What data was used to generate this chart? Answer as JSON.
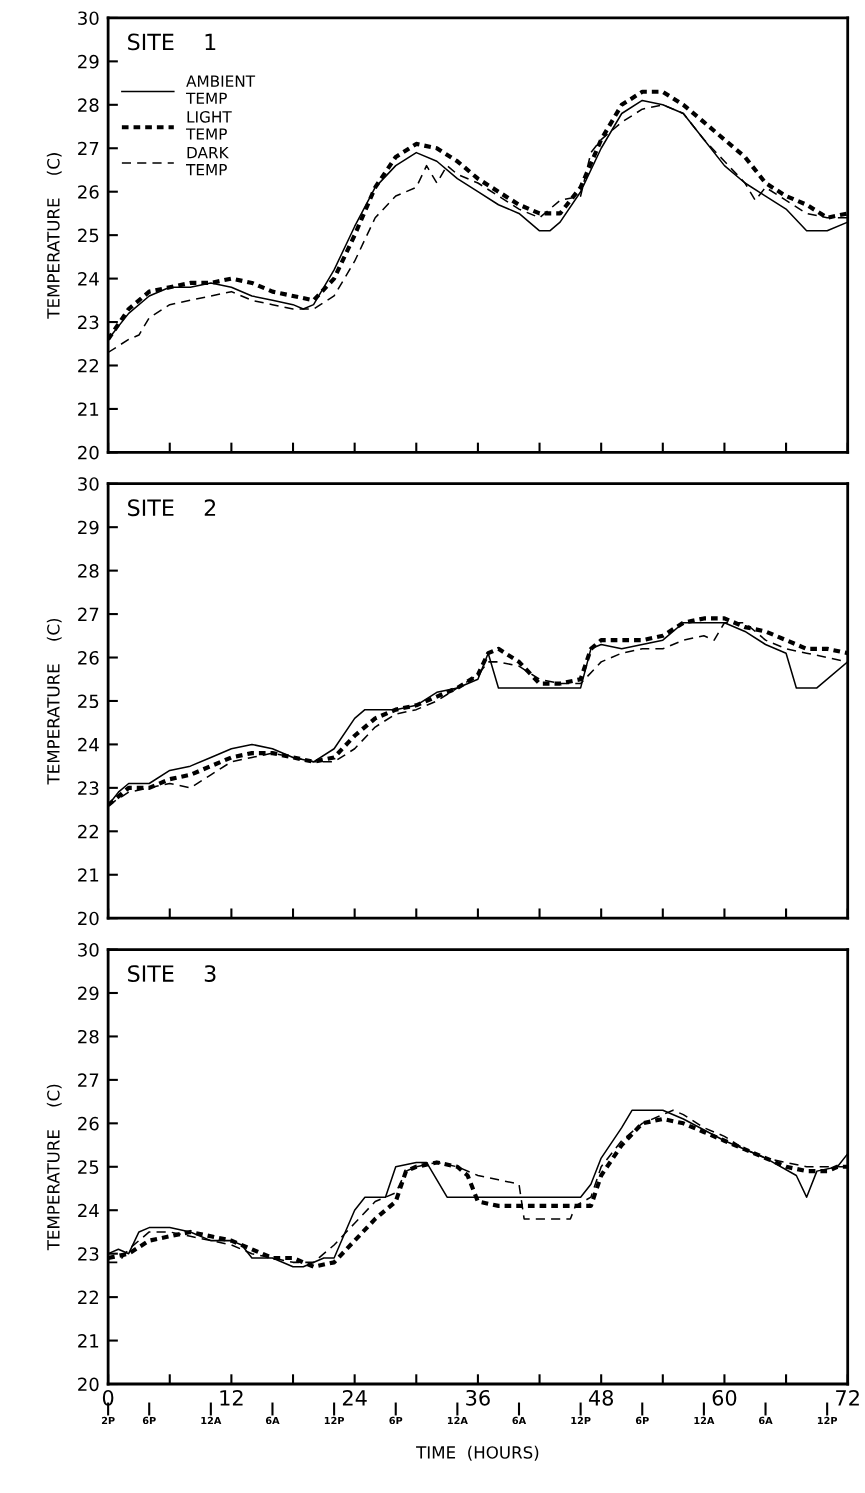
{
  "chart_data": [
    {
      "type": "line",
      "annotations": [
        "SITE    1"
      ],
      "ylabel": "TEMPERATURE    (C)",
      "xlim": [
        0,
        72
      ],
      "ylim": [
        20,
        30
      ],
      "tick_labels": "y",
      "legend": "top left",
      "grid": false,
      "xticks": [
        {
          "value": 0,
          "label": null
        },
        {
          "value": 6,
          "label": null
        },
        {
          "value": 12,
          "label": null
        },
        {
          "value": 18,
          "label": null
        },
        {
          "value": 24,
          "label": null
        },
        {
          "value": 30,
          "label": null
        },
        {
          "value": 36,
          "label": null
        },
        {
          "value": 42,
          "label": null
        },
        {
          "value": 48,
          "label": null
        },
        {
          "value": 54,
          "label": null
        },
        {
          "value": 60,
          "label": null
        },
        {
          "value": 66,
          "label": null
        },
        {
          "value": 72,
          "label": null
        }
      ],
      "yticks": [
        20,
        21,
        22,
        23,
        24,
        25,
        26,
        27,
        28,
        29,
        30
      ],
      "series": [
        {
          "name": "AMBIENT\nTEMP",
          "color": "#000000",
          "line_style": "solid",
          "x": [
            0,
            2,
            4,
            6,
            8,
            10,
            12,
            14,
            16,
            18,
            19,
            20,
            22,
            24,
            26,
            28,
            30,
            32,
            34,
            36,
            38,
            40,
            42,
            43,
            44,
            46,
            48,
            50,
            52,
            54,
            56,
            58,
            60,
            62,
            64,
            66,
            68,
            70,
            72
          ],
          "values": [
            22.6,
            23.2,
            23.6,
            23.8,
            23.8,
            23.9,
            23.8,
            23.6,
            23.5,
            23.4,
            23.3,
            23.4,
            24.2,
            25.2,
            26.1,
            26.6,
            26.9,
            26.7,
            26.3,
            26.0,
            25.7,
            25.5,
            25.1,
            25.1,
            25.3,
            26.0,
            27.0,
            27.8,
            28.1,
            28.0,
            27.8,
            27.2,
            26.6,
            26.2,
            25.9,
            25.6,
            25.1,
            25.1,
            25.3
          ]
        },
        {
          "name": "LIGHT\nTEMP",
          "color": "#000000",
          "line_style": "dotted",
          "x": [
            0,
            2,
            4,
            6,
            8,
            10,
            12,
            14,
            16,
            18,
            20,
            22,
            24,
            26,
            28,
            30,
            32,
            34,
            36,
            38,
            40,
            42,
            44,
            46,
            48,
            50,
            52,
            54,
            56,
            58,
            60,
            62,
            64,
            66,
            68,
            70,
            72
          ],
          "values": [
            22.6,
            23.3,
            23.7,
            23.8,
            23.9,
            23.9,
            24.0,
            23.9,
            23.7,
            23.6,
            23.5,
            24.0,
            25.0,
            26.1,
            26.8,
            27.1,
            27.0,
            26.7,
            26.3,
            26.0,
            25.7,
            25.5,
            25.5,
            26.1,
            27.2,
            28.0,
            28.3,
            28.3,
            28.0,
            27.6,
            27.2,
            26.8,
            26.2,
            25.9,
            25.7,
            25.4,
            25.5
          ]
        },
        {
          "name": "DARK\nTEMP",
          "color": "#000000",
          "line_style": "dashed",
          "x": [
            0,
            2,
            3,
            4,
            6,
            8,
            10,
            12,
            14,
            16,
            18,
            20,
            22,
            24,
            26,
            28,
            30,
            31,
            32,
            33,
            34,
            36,
            38,
            40,
            42,
            44,
            46,
            47,
            48,
            50,
            52,
            54,
            56,
            58,
            60,
            62,
            63,
            64,
            66,
            68,
            70,
            72
          ],
          "values": [
            22.3,
            22.6,
            22.7,
            23.1,
            23.4,
            23.5,
            23.6,
            23.7,
            23.5,
            23.4,
            23.3,
            23.3,
            23.6,
            24.4,
            25.4,
            25.9,
            26.1,
            26.6,
            26.2,
            26.6,
            26.4,
            26.2,
            25.9,
            25.6,
            25.4,
            25.8,
            25.9,
            26.9,
            27.2,
            27.6,
            27.9,
            28.0,
            27.8,
            27.2,
            26.7,
            26.2,
            25.8,
            26.1,
            25.8,
            25.5,
            25.4,
            25.4
          ]
        }
      ]
    },
    {
      "type": "line",
      "annotations": [
        "SITE    2"
      ],
      "ylabel": "TEMPERATURE    (C)",
      "xlim": [
        0,
        72
      ],
      "ylim": [
        20,
        30
      ],
      "tick_labels": "y",
      "grid": false,
      "xticks": [
        {
          "value": 0,
          "label": null
        },
        {
          "value": 6,
          "label": null
        },
        {
          "value": 12,
          "label": null
        },
        {
          "value": 18,
          "label": null
        },
        {
          "value": 24,
          "label": null
        },
        {
          "value": 30,
          "label": null
        },
        {
          "value": 36,
          "label": null
        },
        {
          "value": 42,
          "label": null
        },
        {
          "value": 48,
          "label": null
        },
        {
          "value": 54,
          "label": null
        },
        {
          "value": 60,
          "label": null
        },
        {
          "value": 66,
          "label": null
        },
        {
          "value": 72,
          "label": null
        }
      ],
      "yticks": [
        20,
        21,
        22,
        23,
        24,
        25,
        26,
        27,
        28,
        29,
        30
      ],
      "series": [
        {
          "color": "#000000",
          "line_style": "solid",
          "x": [
            0,
            1,
            2,
            3,
            4,
            6,
            8,
            10,
            12,
            14,
            16,
            18,
            20,
            22,
            24,
            25,
            28,
            30,
            32,
            34,
            36,
            37,
            38,
            40,
            46,
            47,
            48,
            50,
            52,
            54,
            56,
            58,
            60,
            62,
            64,
            66,
            67,
            69,
            72
          ],
          "values": [
            22.6,
            22.9,
            23.1,
            23.1,
            23.1,
            23.4,
            23.5,
            23.7,
            23.9,
            24.0,
            23.9,
            23.7,
            23.6,
            23.9,
            24.6,
            24.8,
            24.8,
            24.9,
            25.2,
            25.3,
            25.5,
            26.1,
            25.3,
            25.3,
            25.3,
            26.2,
            26.3,
            26.2,
            26.3,
            26.4,
            26.8,
            26.8,
            26.8,
            26.6,
            26.3,
            26.1,
            25.3,
            25.3,
            25.9
          ]
        },
        {
          "color": "#000000",
          "line_style": "dotted",
          "x": [
            0,
            2,
            4,
            6,
            8,
            10,
            12,
            14,
            16,
            18,
            20,
            22,
            24,
            26,
            28,
            30,
            32,
            34,
            36,
            37,
            38,
            40,
            42,
            44,
            46,
            47,
            48,
            50,
            52,
            54,
            56,
            58,
            60,
            62,
            64,
            66,
            68,
            70,
            72
          ],
          "values": [
            22.6,
            23.0,
            23.0,
            23.2,
            23.3,
            23.5,
            23.7,
            23.8,
            23.8,
            23.7,
            23.6,
            23.7,
            24.2,
            24.6,
            24.8,
            24.9,
            25.1,
            25.3,
            25.6,
            26.1,
            26.2,
            25.9,
            25.4,
            25.4,
            25.5,
            26.2,
            26.4,
            26.4,
            26.4,
            26.5,
            26.8,
            26.9,
            26.9,
            26.7,
            26.6,
            26.4,
            26.2,
            26.2,
            26.1
          ]
        },
        {
          "color": "#000000",
          "line_style": "dashed",
          "x": [
            0,
            2,
            4,
            6,
            8,
            10,
            12,
            14,
            16,
            18,
            20,
            22,
            24,
            26,
            28,
            30,
            32,
            34,
            36,
            37,
            38,
            40,
            42,
            44,
            46,
            48,
            50,
            52,
            54,
            56,
            58,
            59,
            60,
            62,
            64,
            66,
            68,
            70,
            72
          ],
          "values": [
            22.6,
            22.9,
            23.0,
            23.1,
            23.0,
            23.3,
            23.6,
            23.7,
            23.8,
            23.7,
            23.6,
            23.6,
            23.9,
            24.4,
            24.7,
            24.8,
            25.0,
            25.3,
            25.6,
            25.9,
            25.9,
            25.8,
            25.5,
            25.4,
            25.4,
            25.9,
            26.1,
            26.2,
            26.2,
            26.4,
            26.5,
            26.4,
            26.8,
            26.8,
            26.4,
            26.2,
            26.1,
            26.0,
            25.9
          ]
        }
      ]
    },
    {
      "type": "line",
      "annotations": [
        "SITE    3",
        {
          "text": "2P",
          "x": 0
        },
        {
          "text": "6P",
          "x": 4
        },
        {
          "text": "12A",
          "x": 10
        },
        {
          "text": "6A",
          "x": 16
        },
        {
          "text": "12P",
          "x": 22
        },
        {
          "text": "6P",
          "x": 28
        },
        {
          "text": "12A",
          "x": 34
        },
        {
          "text": "6A",
          "x": 40
        },
        {
          "text": "12P",
          "x": 46
        },
        {
          "text": "6P",
          "x": 52
        },
        {
          "text": "12A",
          "x": 58
        },
        {
          "text": "6A",
          "x": 64
        },
        {
          "text": "12P",
          "x": 70
        }
      ],
      "ylabel": "TEMPERATURE    (C)",
      "xlabel": "TIME  (HOURS)",
      "xlim": [
        0,
        72
      ],
      "ylim": [
        20,
        30
      ],
      "grid": false,
      "xticks": [
        0,
        {
          "value": 6,
          "label": null
        },
        12,
        {
          "value": 18,
          "label": null
        },
        24,
        {
          "value": 30,
          "label": null
        },
        36,
        {
          "value": 42,
          "label": null
        },
        48,
        {
          "value": 54,
          "label": null
        },
        60,
        {
          "value": 66,
          "label": null
        },
        72
      ],
      "yticks": [
        20,
        21,
        22,
        23,
        24,
        25,
        26,
        27,
        28,
        29,
        30
      ],
      "series": [
        {
          "color": "#000000",
          "line_style": "solid",
          "x": [
            0,
            1,
            2,
            3,
            4,
            6,
            8,
            10,
            12,
            13,
            14,
            16,
            18,
            19,
            21,
            22,
            24,
            25,
            27,
            28,
            30,
            31,
            33,
            36,
            46,
            47,
            48,
            50,
            51,
            54,
            56,
            60,
            64,
            67,
            68,
            69,
            71,
            72
          ],
          "values": [
            23.0,
            23.1,
            23.0,
            23.5,
            23.6,
            23.6,
            23.5,
            23.3,
            23.3,
            23.2,
            22.9,
            22.9,
            22.7,
            22.7,
            22.9,
            22.9,
            24.0,
            24.3,
            24.3,
            25.0,
            25.1,
            25.1,
            24.3,
            24.3,
            24.3,
            24.6,
            25.2,
            25.9,
            26.3,
            26.3,
            26.1,
            25.6,
            25.2,
            24.8,
            24.3,
            24.9,
            25.0,
            25.3
          ]
        },
        {
          "color": "#000000",
          "line_style": "dotted",
          "x": [
            0,
            2,
            4,
            6,
            8,
            10,
            12,
            14,
            16,
            18,
            20,
            22,
            24,
            26,
            27,
            28,
            29,
            30,
            32,
            34,
            35,
            36,
            38,
            46,
            47,
            48,
            50,
            52,
            54,
            56,
            58,
            60,
            62,
            64,
            66,
            68,
            70,
            71,
            72
          ],
          "values": [
            22.9,
            23.0,
            23.3,
            23.4,
            23.5,
            23.4,
            23.3,
            23.1,
            22.9,
            22.9,
            22.7,
            22.8,
            23.3,
            23.8,
            24.0,
            24.2,
            24.9,
            25.0,
            25.1,
            25.0,
            24.8,
            24.2,
            24.1,
            24.1,
            24.1,
            24.8,
            25.5,
            26.0,
            26.1,
            26.0,
            25.8,
            25.6,
            25.4,
            25.2,
            25.0,
            24.9,
            24.9,
            25.0,
            25.0
          ]
        },
        {
          "color": "#000000",
          "line_style": "dashed",
          "x": [
            0,
            1,
            2,
            4,
            6,
            8,
            10,
            12,
            14,
            16,
            18,
            20,
            22,
            24,
            26,
            28,
            29,
            30,
            32,
            34,
            36,
            38,
            40,
            40.5,
            45,
            45.5,
            47,
            48,
            50,
            52,
            54,
            55,
            56,
            58,
            60,
            62,
            64,
            66,
            68,
            70,
            72
          ],
          "values": [
            22.8,
            22.8,
            23.1,
            23.5,
            23.5,
            23.4,
            23.3,
            23.2,
            23.0,
            22.9,
            22.8,
            22.8,
            23.2,
            23.7,
            24.2,
            24.4,
            24.9,
            25.0,
            25.1,
            25.0,
            24.8,
            24.7,
            24.6,
            23.8,
            23.8,
            24.1,
            24.3,
            25.0,
            25.6,
            26.0,
            26.2,
            26.3,
            26.2,
            25.9,
            25.7,
            25.4,
            25.2,
            25.1,
            25.0,
            25.0,
            25.0
          ]
        }
      ]
    }
  ]
}
